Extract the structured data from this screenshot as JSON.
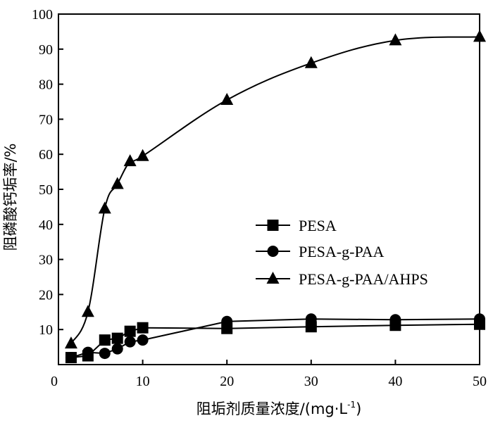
{
  "chart_data": {
    "type": "line",
    "xlabel": "阻垢剂质量浓度/(mg·L",
    "xlabel_sup": "-1",
    "xlabel_close": ")",
    "ylabel": "阻磷酸钙垢率/%",
    "xlim": [
      0,
      50
    ],
    "ylim": [
      0,
      100
    ],
    "xticks": [
      0,
      10,
      20,
      30,
      40,
      50
    ],
    "yticks": [
      10,
      20,
      30,
      40,
      50,
      60,
      70,
      80,
      90,
      100
    ],
    "legend_position": "center-right",
    "grid": false,
    "series": [
      {
        "name": "PESA",
        "marker": "square",
        "x": [
          1.5,
          3.5,
          5.5,
          7.0,
          8.5,
          10,
          20,
          30,
          40,
          50
        ],
        "y": [
          2,
          2.5,
          7,
          7.5,
          9.5,
          10.5,
          10.3,
          10.8,
          11.2,
          11.5
        ]
      },
      {
        "name": "PESA-g-PAA",
        "marker": "circle",
        "x": [
          1.5,
          3.5,
          5.5,
          7.0,
          8.5,
          10,
          20,
          30,
          40,
          50
        ],
        "y": [
          2,
          3.5,
          3.2,
          4.5,
          6.5,
          7,
          12.3,
          13,
          12.8,
          13
        ]
      },
      {
        "name": "PESA-g-PAA/AHPS",
        "marker": "triangle",
        "x": [
          1.5,
          3.5,
          5.5,
          7.0,
          8.5,
          10,
          20,
          30,
          40,
          50
        ],
        "y": [
          6,
          15,
          44.5,
          51.5,
          58,
          59.5,
          75.5,
          86,
          92.5,
          93.5
        ]
      }
    ]
  }
}
